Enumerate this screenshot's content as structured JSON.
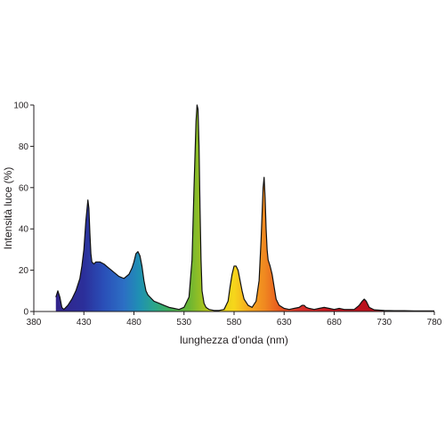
{
  "chart_data": {
    "type": "area",
    "title": "",
    "xlabel": "lunghezza d'onda (nm)",
    "ylabel": "Intensità luce (%)",
    "xlim": [
      380,
      780
    ],
    "ylim": [
      0,
      100
    ],
    "xticks": [
      380,
      430,
      480,
      530,
      580,
      630,
      680,
      730,
      780
    ],
    "yticks": [
      0,
      20,
      40,
      60,
      80,
      100
    ],
    "grid": false,
    "legend": "none",
    "fill": "visible-spectrum-gradient",
    "series": [
      {
        "x": [
          402,
          404,
          406,
          408,
          410,
          414,
          418,
          422,
          426,
          428,
          430,
          432,
          434,
          435,
          436,
          437,
          438,
          440,
          442,
          444,
          446,
          450,
          455,
          460,
          465,
          470,
          475,
          478,
          480,
          482,
          484,
          486,
          488,
          490,
          492,
          494,
          496,
          500,
          505,
          510,
          515,
          520,
          525,
          530,
          535,
          538,
          540,
          542,
          543,
          544,
          545,
          546,
          547,
          548,
          550,
          552,
          555,
          560,
          565,
          570,
          574,
          576,
          578,
          580,
          582,
          584,
          586,
          588,
          590,
          594,
          598,
          602,
          605,
          607,
          609,
          610,
          611,
          612,
          613,
          614,
          616,
          618,
          620,
          622,
          625,
          630,
          635,
          640,
          645,
          648,
          650,
          652,
          655,
          660,
          665,
          670,
          675,
          680,
          685,
          690,
          695,
          700,
          705,
          708,
          710,
          712,
          715,
          720,
          730,
          740,
          750,
          760,
          770,
          780
        ],
        "y": [
          7,
          10,
          7,
          2,
          1,
          3,
          6,
          10,
          16,
          22,
          30,
          44,
          54,
          50,
          38,
          28,
          24,
          23,
          24,
          24,
          24,
          23,
          21,
          19,
          17,
          16,
          18,
          21,
          24,
          28,
          29,
          27,
          22,
          15,
          10,
          8,
          7,
          5,
          4,
          3,
          2,
          1.5,
          1,
          2,
          7,
          25,
          60,
          92,
          100,
          98,
          80,
          50,
          25,
          10,
          4,
          2,
          1,
          0.5,
          0.5,
          1,
          5,
          12,
          18,
          22,
          22,
          20,
          15,
          10,
          6,
          3,
          2,
          5,
          15,
          35,
          60,
          65,
          55,
          40,
          30,
          25,
          22,
          18,
          12,
          6,
          3,
          1.5,
          1,
          1.5,
          2,
          3,
          3,
          2,
          1.5,
          1,
          1.5,
          2,
          1.5,
          1,
          1.5,
          1,
          1,
          1,
          3,
          5,
          6,
          5,
          2,
          0.8,
          0.5,
          0.4,
          0.4,
          0.3,
          0.3,
          0.3
        ]
      }
    ]
  }
}
